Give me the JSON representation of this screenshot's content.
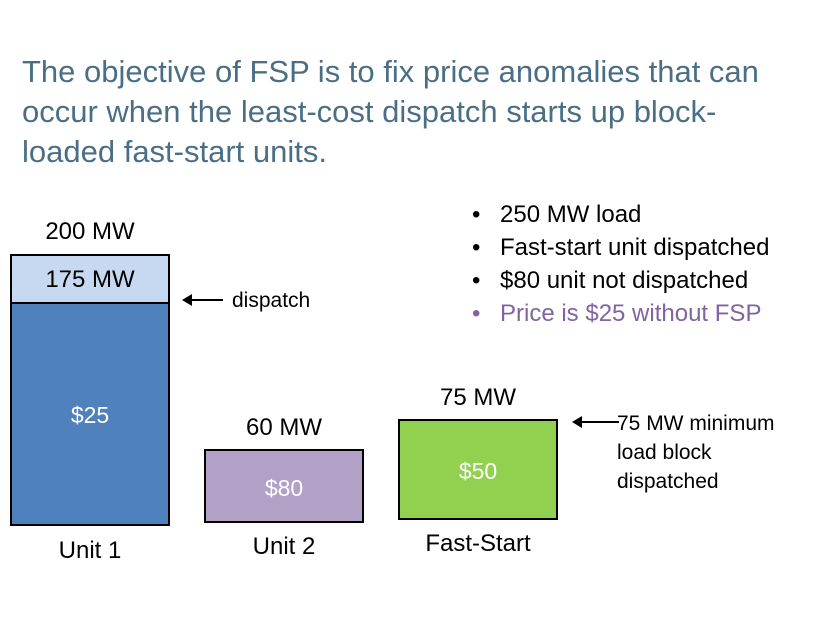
{
  "title_lines": [
    "The objective of FSP is to fix price anomalies that can",
    "occur when the least-cost dispatch starts up block-",
    "loaded fast-start units."
  ],
  "bullets": [
    {
      "text": "250 MW load",
      "color": "#000000"
    },
    {
      "text": "Fast-start unit dispatched",
      "color": "#000000"
    },
    {
      "text": "$80 unit not dispatched",
      "color": "#000000"
    },
    {
      "text": "Price is $25 without FSP",
      "color": "#8064a2"
    }
  ],
  "bullet_char": "•",
  "units": [
    {
      "name": "Unit 1",
      "capacity": "200 MW",
      "price": "$25",
      "dispatch": "175 MW",
      "color": "#4f81bd",
      "upper_color": "#c6d9f1"
    },
    {
      "name": "Unit 2",
      "capacity": "60 MW",
      "price": "$80",
      "color": "#b2a1c7"
    },
    {
      "name": "Fast-Start",
      "capacity": "75 MW",
      "price": "$50",
      "color": "#92d050"
    }
  ],
  "annotations": {
    "dispatch": "dispatch",
    "block_lines": [
      "75 MW minimum",
      "load block",
      "dispatched"
    ]
  }
}
